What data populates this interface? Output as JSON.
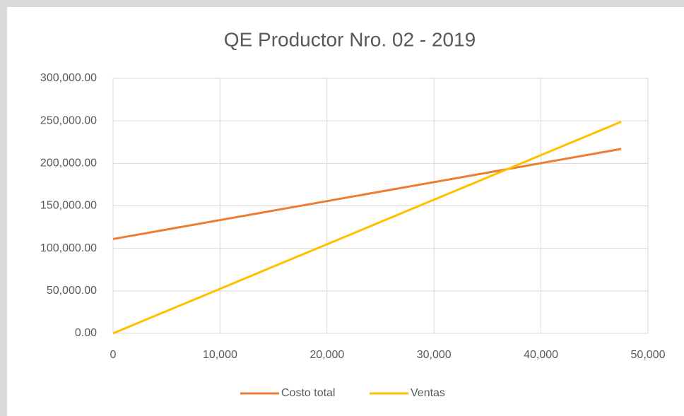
{
  "chart_data": {
    "type": "line",
    "title": "QE Productor Nro. 02 - 2019",
    "x": [
      0,
      47500
    ],
    "series": [
      {
        "name": "Costo total",
        "color": "#ED7D31",
        "values": [
          111000,
          217000
        ]
      },
      {
        "name": "Ventas",
        "color": "#FFC000",
        "values": [
          0,
          249000
        ]
      }
    ],
    "xlim": [
      0,
      50000
    ],
    "xticks": [
      0,
      {
        "value": 10000,
        "label": "10,000"
      },
      {
        "value": 20000,
        "label": "20,000"
      },
      {
        "value": 30000,
        "label": "30,000"
      },
      {
        "value": 40000,
        "label": "40,000"
      },
      {
        "value": 50000,
        "label": "50,000"
      }
    ],
    "ylim": [
      0,
      300000
    ],
    "yticks": [
      {
        "value": 0,
        "label": "0.00"
      },
      {
        "value": 50000,
        "label": "50,000.00"
      },
      {
        "value": 100000,
        "label": "100,000.00"
      },
      {
        "value": 150000,
        "label": "150,000.00"
      },
      {
        "value": 200000,
        "label": "200,000.00"
      },
      {
        "value": 250000,
        "label": "250,000.00"
      },
      {
        "value": 300000,
        "label": "300,000.00"
      }
    ],
    "grid": true,
    "legend": "bottom"
  }
}
